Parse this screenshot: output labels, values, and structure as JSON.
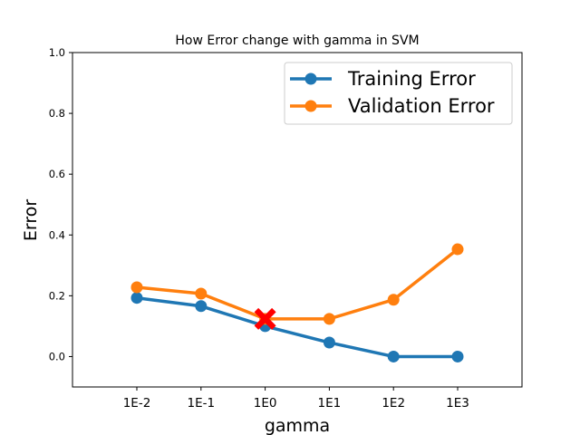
{
  "chart_data": {
    "type": "line",
    "title": "How Error change with gamma in SVM",
    "xlabel": "gamma",
    "ylabel": "Error",
    "categories": [
      "1E-2",
      "1E-1",
      "1E0",
      "1E1",
      "1E2",
      "1E3"
    ],
    "ylim": [
      -0.1,
      1.0
    ],
    "yticks": [
      "0.0",
      "0.2",
      "0.4",
      "0.6",
      "0.8",
      "1.0"
    ],
    "grid": false,
    "legend_position": "top-right",
    "series": [
      {
        "name": "Training Error",
        "color": "#1f77b4",
        "values": [
          0.193,
          0.166,
          0.1,
          0.046,
          0.0,
          0.0
        ]
      },
      {
        "name": "Validation Error",
        "color": "#ff7f0e",
        "values": [
          0.228,
          0.207,
          0.124,
          0.124,
          0.187,
          0.353
        ]
      }
    ],
    "best_marker": {
      "category": "1E0",
      "value": 0.124,
      "color": "#ff0000",
      "shape": "x-filled"
    }
  }
}
